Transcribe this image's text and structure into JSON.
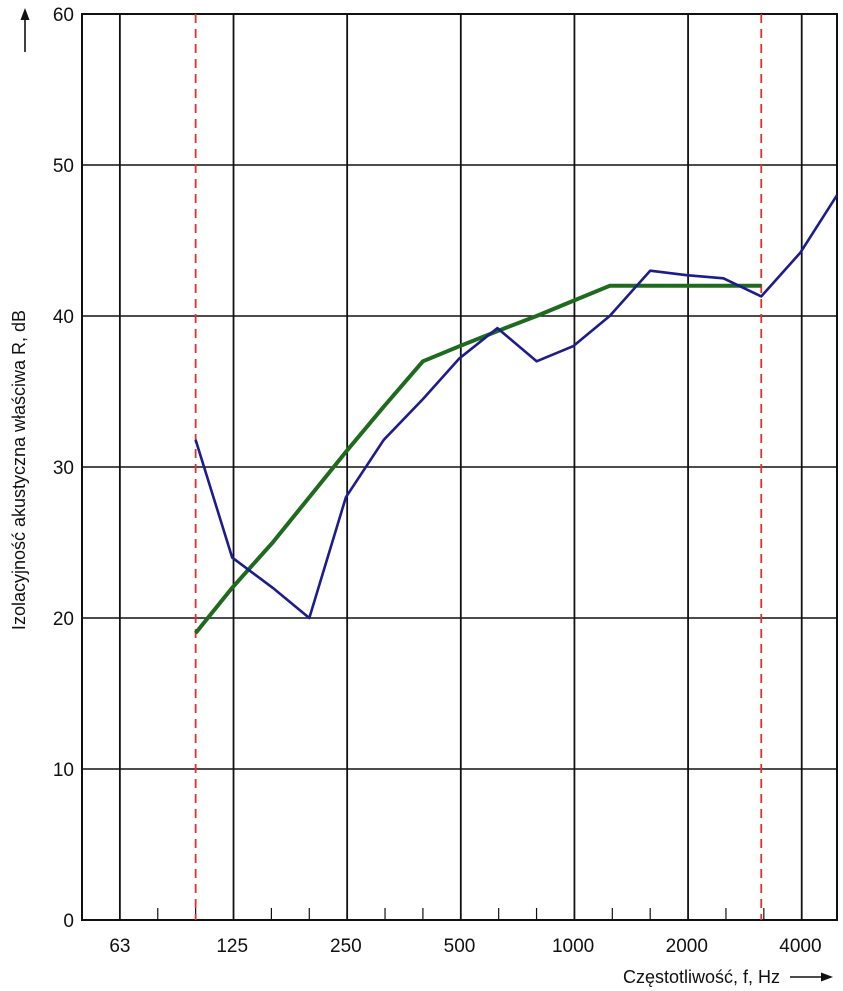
{
  "chart_data": {
    "type": "line",
    "title": "",
    "xlabel": "Częstotliwość, f, Hz",
    "ylabel": "Izolacyjność akustyczna właściwa R, dB",
    "x_scale": "log (1/3-octave bands)",
    "x_tick_labels": [
      "63",
      "125",
      "250",
      "500",
      "1000",
      "2000",
      "4000"
    ],
    "x_ticks": [
      63,
      125,
      250,
      500,
      1000,
      2000,
      4000
    ],
    "x_range": [
      50,
      5000
    ],
    "ylim": [
      0,
      60
    ],
    "y_ticks": [
      0,
      10,
      20,
      30,
      40,
      50,
      60
    ],
    "grid": true,
    "reference_lines": [
      {
        "x": 100,
        "style": "dashed",
        "color": "#e03030"
      },
      {
        "x": 3150,
        "style": "dashed",
        "color": "#e03030"
      }
    ],
    "series": [
      {
        "color": "#1c1c8c",
        "x": [
          100,
          125,
          160,
          200,
          250,
          315,
          400,
          500,
          630,
          800,
          1000,
          1250,
          1600,
          2000,
          2500,
          3150,
          4000,
          5000
        ],
        "y": [
          31.8,
          24,
          22,
          20,
          28,
          31.8,
          34.5,
          37.2,
          39.2,
          37,
          38,
          40,
          43,
          42.7,
          42.5,
          41.3,
          44.2,
          48
        ]
      },
      {
        "color": "#1e6b1e",
        "x": [
          100,
          125,
          160,
          200,
          250,
          315,
          400,
          500,
          630,
          800,
          1000,
          1250,
          1600,
          2000,
          2500,
          3150
        ],
        "y": [
          19,
          22,
          25,
          28,
          31,
          34,
          37,
          38,
          39,
          40,
          41,
          42,
          42,
          42,
          42,
          42
        ]
      }
    ]
  }
}
